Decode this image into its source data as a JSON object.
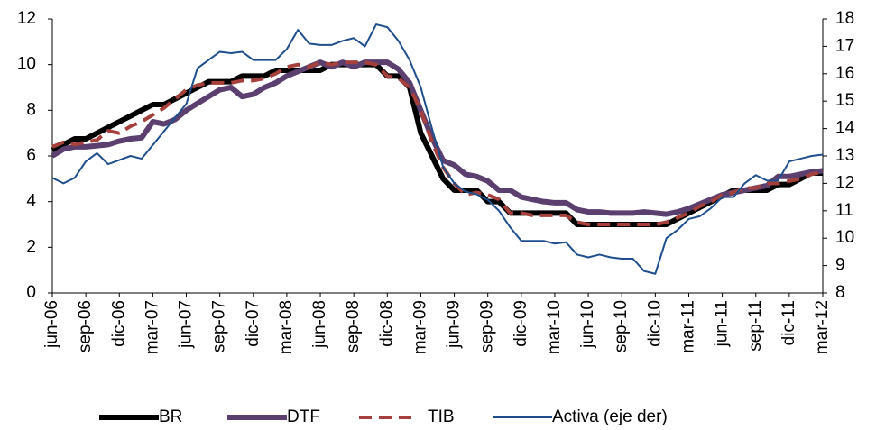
{
  "chart_data": {
    "type": "line",
    "categories": [
      "jun-06",
      null,
      null,
      "sep-06",
      null,
      null,
      "dic-06",
      null,
      null,
      "mar-07",
      null,
      null,
      "jun-07",
      null,
      null,
      "sep-07",
      null,
      null,
      "dic-07",
      null,
      null,
      "mar-08",
      null,
      null,
      "jun-08",
      null,
      null,
      "sep-08",
      null,
      null,
      "dic-08",
      null,
      null,
      "mar-09",
      null,
      null,
      "jun-09",
      null,
      null,
      "sep-09",
      null,
      null,
      "dic-09",
      null,
      null,
      "mar-10",
      null,
      null,
      "jun-10",
      null,
      null,
      "sep-10",
      null,
      null,
      "dic-10",
      null,
      null,
      "mar-11",
      null,
      null,
      "jun-11",
      null,
      null,
      "sep-11",
      null,
      null,
      "dic-11",
      null,
      null,
      "mar-12"
    ],
    "ylim": [
      0,
      12
    ],
    "yticks": [
      0,
      2,
      4,
      6,
      8,
      10,
      12
    ],
    "y2lim": [
      8,
      18
    ],
    "y2ticks": [
      8,
      9,
      10,
      11,
      12,
      13,
      14,
      15,
      16,
      17,
      18
    ],
    "series": [
      {
        "name": "BR",
        "color": "#000000",
        "width": 6,
        "dashed": false,
        "values": [
          6.25,
          6.5,
          6.75,
          6.75,
          7,
          7.25,
          7.5,
          7.75,
          8,
          8.25,
          8.25,
          8.5,
          8.75,
          9,
          9.25,
          9.25,
          9.25,
          9.5,
          9.5,
          9.5,
          9.75,
          9.75,
          9.75,
          9.75,
          9.75,
          10,
          10,
          10,
          10,
          10,
          9.5,
          9.5,
          9,
          7,
          6,
          5,
          4.5,
          4.5,
          4.5,
          4,
          4,
          3.5,
          3.5,
          3.5,
          3.5,
          3.5,
          3.5,
          3,
          3,
          3,
          3,
          3,
          3,
          3,
          3,
          3,
          3.25,
          3.5,
          3.75,
          4,
          4.25,
          4.5,
          4.5,
          4.5,
          4.5,
          4.75,
          4.75,
          5,
          5.25,
          5.25
        ]
      },
      {
        "name": "DTF",
        "color": "#5b3f6e",
        "width": 6,
        "dashed": false,
        "values": [
          6.0,
          6.3,
          6.4,
          6.4,
          6.45,
          6.5,
          6.65,
          6.75,
          6.8,
          7.5,
          7.4,
          7.6,
          8.0,
          8.3,
          8.6,
          8.9,
          9.0,
          8.6,
          8.7,
          9.0,
          9.2,
          9.5,
          9.7,
          9.9,
          10.1,
          9.9,
          10.1,
          9.9,
          10.1,
          10.1,
          10.1,
          9.8,
          9.2,
          8.0,
          6.8,
          5.8,
          5.6,
          5.2,
          5.1,
          4.9,
          4.5,
          4.5,
          4.2,
          4.1,
          4.0,
          3.95,
          3.95,
          3.65,
          3.55,
          3.55,
          3.5,
          3.5,
          3.5,
          3.55,
          3.5,
          3.45,
          3.55,
          3.7,
          3.9,
          4.1,
          4.3,
          4.4,
          4.5,
          4.6,
          4.7,
          5.1,
          5.1,
          5.2,
          5.3,
          5.35
        ]
      },
      {
        "name": "TIB",
        "color": "#a5403c",
        "width": 4,
        "dashed": true,
        "values": [
          6.4,
          6.6,
          6.5,
          6.6,
          6.7,
          7.1,
          7.0,
          7.3,
          7.5,
          7.8,
          8.1,
          8.5,
          8.9,
          9.1,
          9.2,
          9.2,
          9.2,
          9.3,
          9.3,
          9.4,
          9.6,
          9.9,
          10.0,
          9.9,
          10.1,
          10.0,
          10.1,
          10.1,
          10.1,
          10.0,
          9.5,
          9.4,
          9.0,
          8.0,
          6.6,
          5.5,
          4.8,
          4.3,
          4.4,
          4.3,
          4.1,
          3.5,
          3.5,
          3.4,
          3.4,
          3.4,
          3.4,
          3.1,
          3.0,
          3.0,
          3.0,
          3.0,
          3.0,
          3.0,
          3.0,
          3.1,
          3.3,
          3.5,
          3.8,
          4.0,
          4.3,
          4.4,
          4.6,
          4.6,
          4.8,
          4.8,
          4.9,
          5.0,
          5.2,
          5.3
        ]
      },
      {
        "name": "Activa (eje der)",
        "color": "#1f4e8c",
        "width": 2,
        "dashed": false,
        "axis": "y2",
        "values": [
          12.2,
          12.0,
          12.2,
          12.8,
          13.1,
          12.7,
          12.85,
          13.0,
          12.9,
          13.4,
          13.9,
          14.4,
          14.9,
          16.2,
          16.5,
          16.8,
          16.75,
          16.8,
          16.5,
          16.5,
          16.5,
          16.9,
          17.6,
          17.1,
          17.05,
          17.05,
          17.2,
          17.3,
          17.0,
          17.8,
          17.7,
          17.2,
          16.5,
          15.5,
          14.0,
          12.6,
          12.0,
          11.7,
          11.6,
          11.4,
          11.0,
          10.4,
          9.9,
          9.9,
          9.9,
          9.8,
          9.85,
          9.4,
          9.3,
          9.4,
          9.3,
          9.25,
          9.25,
          8.8,
          8.7,
          10.0,
          10.3,
          10.7,
          10.8,
          11.1,
          11.5,
          11.5,
          12.0,
          12.3,
          12.1,
          12.1,
          12.8,
          12.9,
          13.0,
          13.05
        ]
      }
    ]
  }
}
